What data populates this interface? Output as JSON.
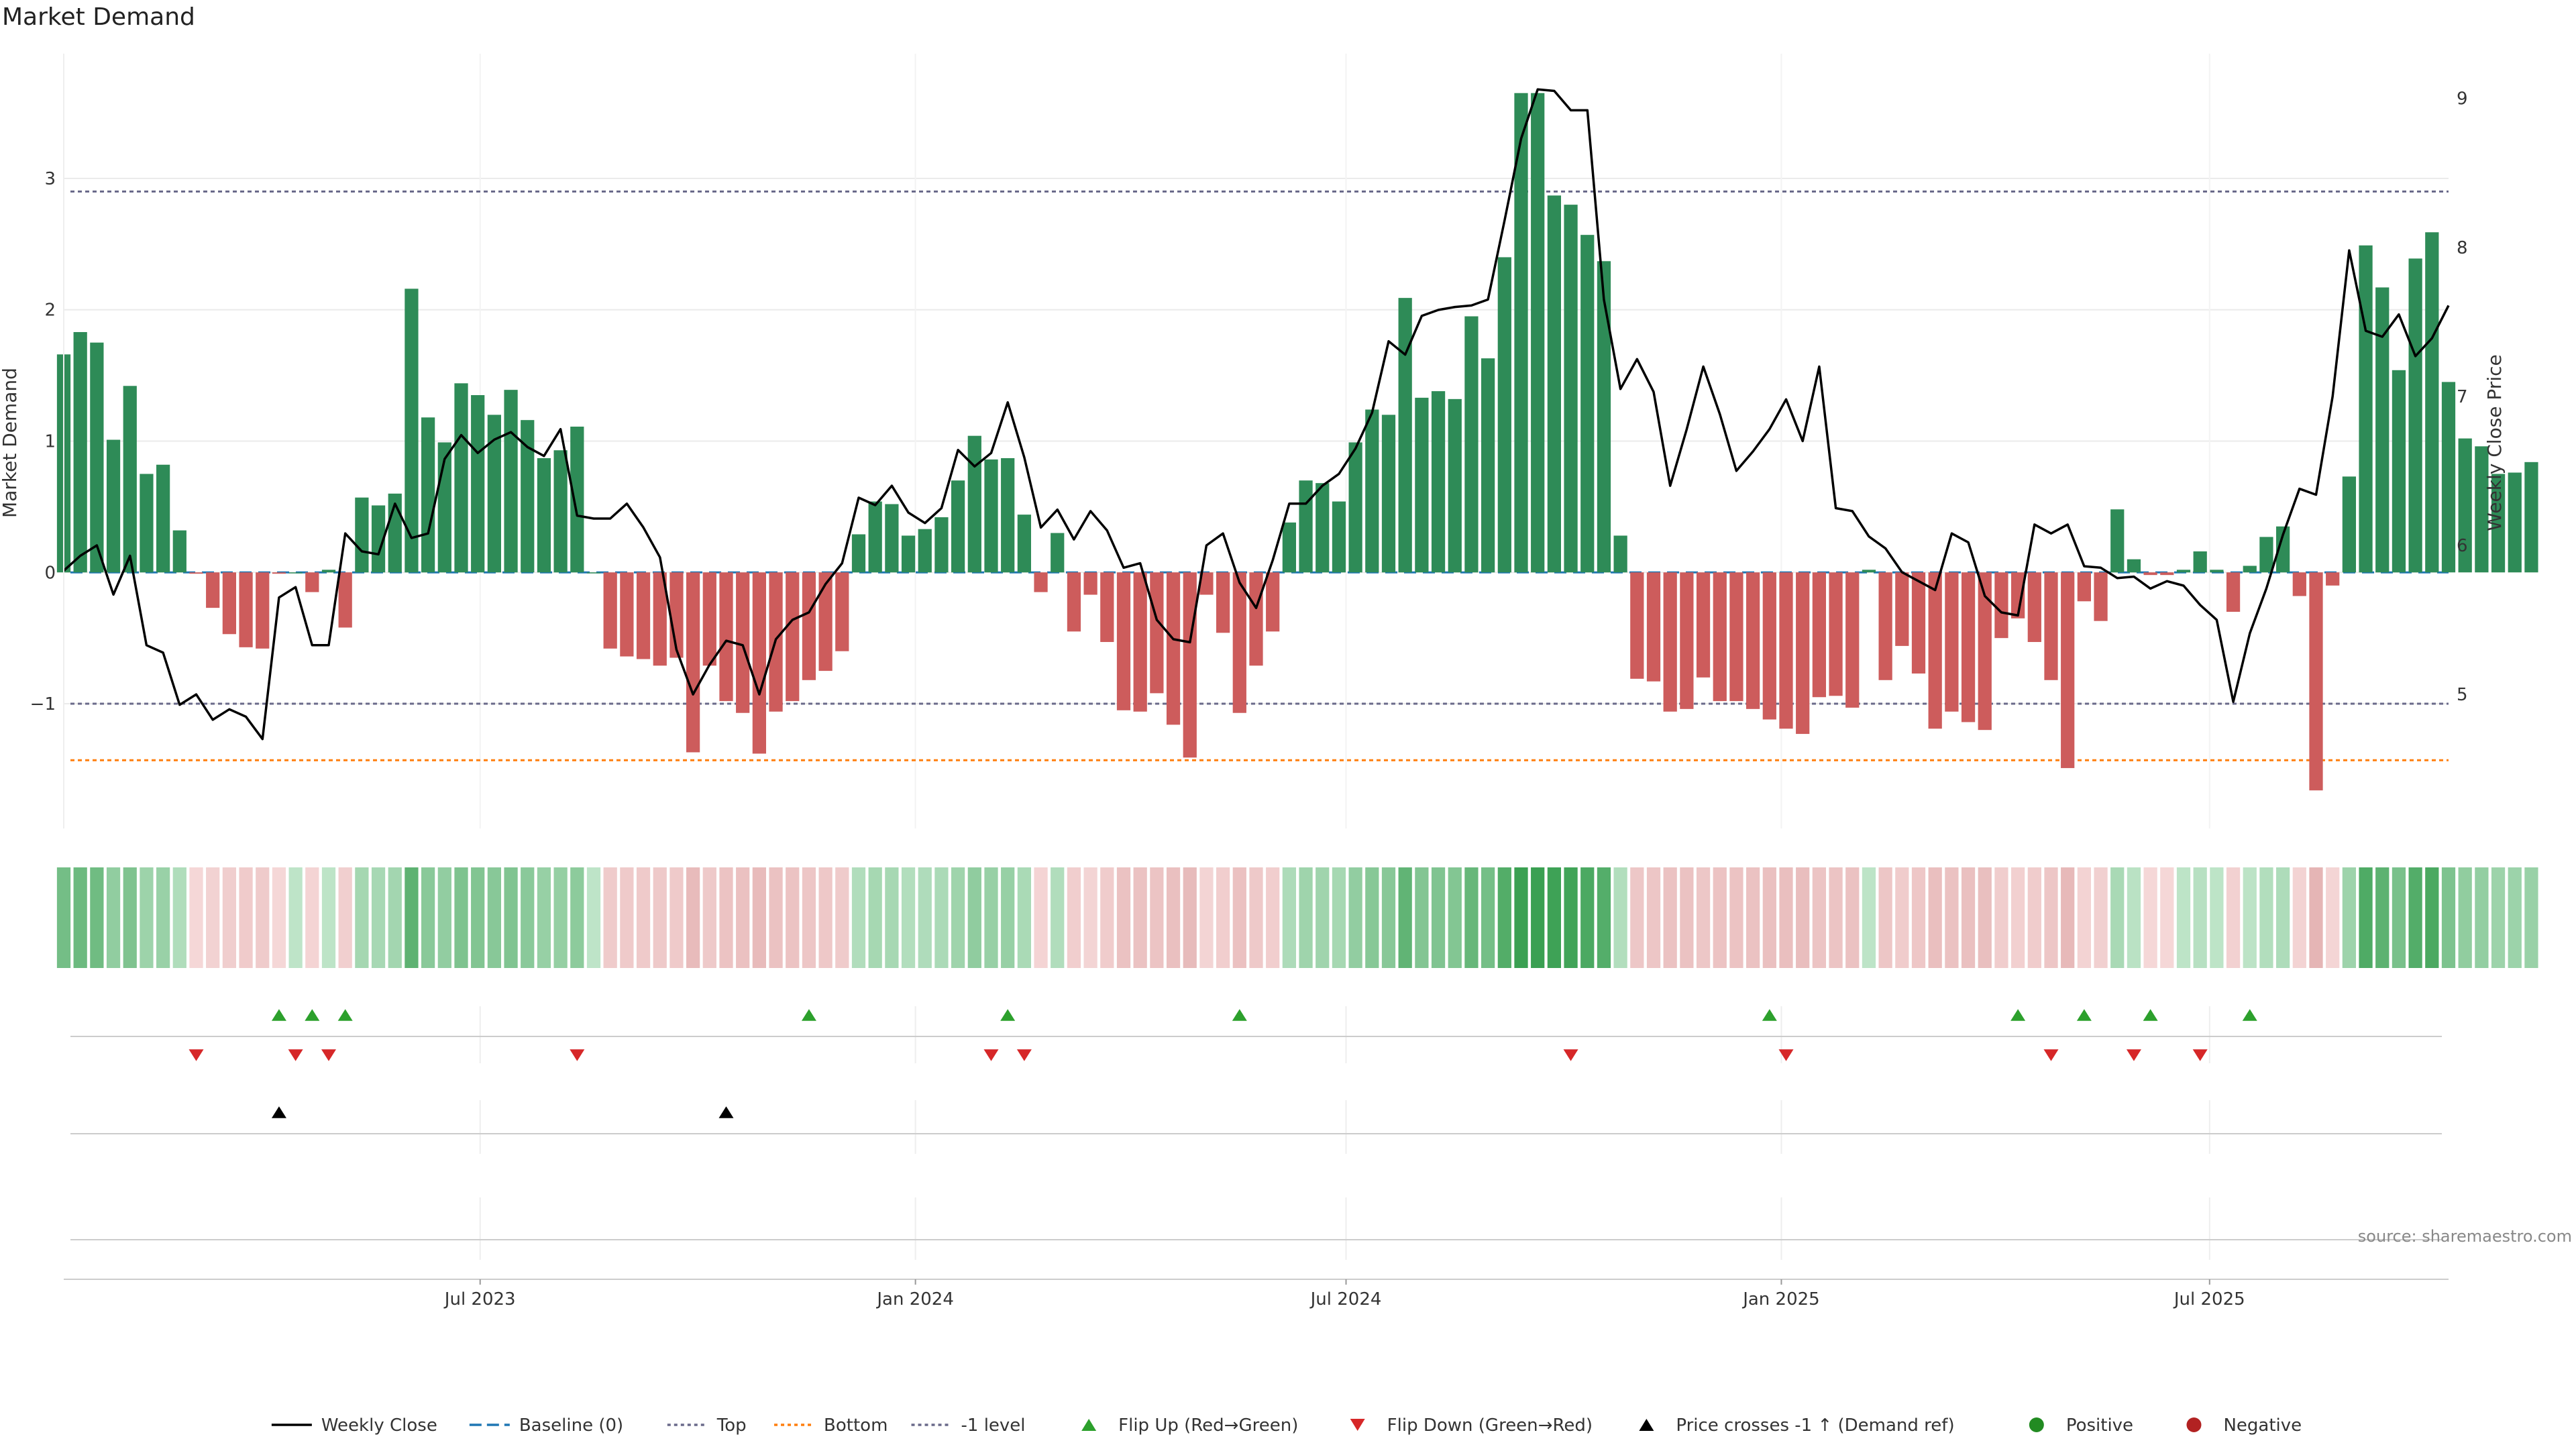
{
  "title": "Market Demand",
  "source": "source: sharemaestro.com",
  "colors": {
    "positive_bar": "#2e8b57",
    "negative_bar": "#cd5c5c",
    "price_line": "#000000",
    "baseline": "#1f77b4",
    "top_line": "#6a6a8a",
    "bottom_line": "#ff7f0e",
    "minus1_line": "#6a6a8a",
    "flip_up": "#2ca02c",
    "flip_down": "#d62728",
    "cross": "#000000",
    "grid": "#ebebeb"
  },
  "chart_data": {
    "type": "bar",
    "x_start": "2023-01-06",
    "x_step_days": 7,
    "xlim": [
      "2023-01-06",
      "2025-10-10"
    ],
    "x_ticks": [
      {
        "date": "2023-07-01",
        "label": "Jul 2023"
      },
      {
        "date": "2024-01-01",
        "label": "Jan 2024"
      },
      {
        "date": "2024-07-01",
        "label": "Jul 2024"
      },
      {
        "date": "2025-01-01",
        "label": "Jan 2025"
      },
      {
        "date": "2025-07-01",
        "label": "Jul 2025"
      }
    ],
    "ylabel_left": "Market Demand",
    "ylabel_right": "Weekly Close Price",
    "ylim_left": [
      -1.95,
      3.95
    ],
    "ylim_right": [
      4.1,
      9.3
    ],
    "left_ticks": [
      {
        "value": 3,
        "label": "3"
      },
      {
        "value": 2,
        "label": "2"
      },
      {
        "value": 1,
        "label": "1"
      },
      {
        "value": 0,
        "label": "0"
      },
      {
        "value": -1,
        "label": "−1"
      }
    ],
    "right_ticks": [
      {
        "value": 9,
        "label": "9"
      },
      {
        "value": 8,
        "label": "8"
      },
      {
        "value": 7,
        "label": "7"
      },
      {
        "value": 6,
        "label": "6"
      },
      {
        "value": 5,
        "label": "5"
      }
    ],
    "reference_lines": {
      "top": 2.9,
      "bottom": -1.43,
      "minus1": -1.0,
      "baseline": 0
    },
    "demand": [
      1.66,
      1.83,
      1.75,
      1.01,
      1.42,
      0.75,
      0.82,
      0.32,
      -0.01,
      -0.27,
      -0.47,
      -0.57,
      -0.58,
      -0.01,
      0.0,
      -0.15,
      0.02,
      -0.42,
      0.57,
      0.51,
      0.6,
      2.16,
      1.18,
      0.99,
      1.44,
      1.35,
      1.2,
      1.39,
      1.16,
      0.87,
      0.93,
      1.11,
      0.0,
      -0.58,
      -0.64,
      -0.66,
      -0.71,
      -0.65,
      -1.37,
      -0.71,
      -0.98,
      -1.07,
      -1.38,
      -1.06,
      -0.98,
      -0.82,
      -0.75,
      -0.6,
      0.29,
      0.54,
      0.52,
      0.28,
      0.33,
      0.42,
      0.7,
      1.04,
      0.86,
      0.87,
      0.44,
      -0.15,
      0.3,
      -0.45,
      -0.17,
      -0.53,
      -1.05,
      -1.06,
      -0.92,
      -1.16,
      -1.41,
      -0.17,
      -0.46,
      -1.07,
      -0.71,
      -0.45,
      0.38,
      0.7,
      0.68,
      0.54,
      0.99,
      1.24,
      1.2,
      2.09,
      1.33,
      1.38,
      1.32,
      1.95,
      1.63,
      2.4,
      3.65,
      3.65,
      2.87,
      2.8,
      2.57,
      2.37,
      0.28,
      -0.81,
      -0.83,
      -1.06,
      -1.04,
      -0.8,
      -0.98,
      -0.98,
      -1.04,
      -1.12,
      -1.19,
      -1.23,
      -0.95,
      -0.94,
      -1.03,
      0.02,
      -0.82,
      -0.56,
      -0.77,
      -1.19,
      -1.06,
      -1.14,
      -1.2,
      -0.5,
      -0.35,
      -0.53,
      -0.82,
      -1.49,
      -0.22,
      -0.37,
      0.48,
      0.1,
      -0.02,
      -0.02,
      0.02,
      0.16,
      0.02,
      -0.3,
      0.05,
      0.27,
      0.35,
      -0.18,
      -1.66,
      -0.1,
      0.73,
      2.49,
      2.17,
      1.54,
      2.39,
      2.59,
      1.45,
      1.02,
      0.96,
      0.75,
      0.76,
      0.84
    ],
    "weekly_close": [
      5.83,
      5.93,
      6.0,
      5.67,
      5.93,
      5.33,
      5.28,
      4.93,
      5.0,
      4.83,
      4.9,
      4.85,
      4.7,
      5.65,
      5.72,
      5.33,
      5.33,
      6.08,
      5.96,
      5.94,
      6.28,
      6.05,
      6.08,
      6.58,
      6.74,
      6.62,
      6.71,
      6.76,
      6.66,
      6.6,
      6.78,
      6.2,
      6.18,
      6.18,
      6.28,
      6.12,
      5.92,
      5.3,
      5.0,
      5.2,
      5.36,
      5.33,
      5.0,
      5.37,
      5.5,
      5.55,
      5.74,
      5.88,
      6.32,
      6.27,
      6.4,
      6.22,
      6.15,
      6.25,
      6.64,
      6.53,
      6.62,
      6.96,
      6.59,
      6.12,
      6.24,
      6.04,
      6.23,
      6.1,
      5.85,
      5.88,
      5.5,
      5.37,
      5.35,
      6.0,
      6.08,
      5.75,
      5.58,
      5.9,
      6.28,
      6.28,
      6.4,
      6.48,
      6.65,
      6.89,
      7.37,
      7.28,
      7.54,
      7.58,
      7.6,
      7.61,
      7.65,
      8.18,
      8.73,
      9.06,
      9.05,
      8.92,
      8.92,
      7.65,
      7.05,
      7.25,
      7.03,
      6.4,
      6.78,
      7.2,
      6.88,
      6.5,
      6.63,
      6.78,
      6.98,
      6.7,
      7.2,
      6.25,
      6.23,
      6.06,
      5.98,
      5.82,
      5.76,
      5.7,
      6.08,
      6.02,
      5.66,
      5.55,
      5.53,
      6.14,
      6.08,
      6.14,
      5.86,
      5.85,
      5.78,
      5.79,
      5.71,
      5.76,
      5.73,
      5.6,
      5.5,
      4.95,
      5.41,
      5.71,
      6.07,
      6.38,
      6.34,
      7.0,
      7.98,
      7.44,
      7.4,
      7.55,
      7.27,
      7.39,
      7.61
    ],
    "bottom_strip_score": [
      1.66,
      1.83,
      1.75,
      1.01,
      1.42,
      0.75,
      0.82,
      0.32,
      -0.01,
      -0.27,
      -0.47,
      -0.57,
      -0.58,
      -0.01,
      0.0,
      -0.15,
      0.02,
      -0.42,
      0.57,
      0.51,
      0.6,
      2.16,
      1.18,
      0.99,
      1.44,
      1.35,
      1.2,
      1.39,
      1.16,
      0.87,
      0.93,
      1.11,
      0.0,
      -0.58,
      -0.64,
      -0.66,
      -0.71,
      -0.65,
      -1.37,
      -0.71,
      -0.98,
      -1.07,
      -1.38,
      -1.06,
      -0.98,
      -0.82,
      -0.75,
      -0.6,
      0.29,
      0.54,
      0.52,
      0.28,
      0.33,
      0.42,
      0.7,
      1.04,
      0.86,
      0.87,
      0.44,
      -0.15,
      0.3,
      -0.45,
      -0.17,
      -0.53,
      -1.05,
      -1.06,
      -0.92,
      -1.16,
      -1.41,
      -0.17,
      -0.46,
      -1.07,
      -0.71,
      -0.45,
      0.38,
      0.7,
      0.68,
      0.54,
      0.99,
      1.24,
      1.2,
      2.09,
      1.33,
      1.38,
      1.32,
      1.95,
      1.63,
      2.4,
      3.65,
      3.65,
      2.87,
      2.8,
      2.57,
      2.37,
      0.28,
      -0.81,
      -0.83,
      -1.06,
      -1.04,
      -0.8,
      -0.98,
      -0.98,
      -1.04,
      -1.12,
      -1.19,
      -1.23,
      -0.95,
      -0.94,
      -1.03,
      0.02,
      -0.82,
      -0.56,
      -0.77,
      -1.19,
      -1.06,
      -1.14,
      -1.2,
      -0.5,
      -0.35,
      -0.53,
      -0.82,
      -1.49,
      -0.22,
      -0.37,
      0.48,
      0.1,
      -0.02,
      -0.02,
      0.02,
      0.16,
      0.02,
      -0.3,
      0.05,
      0.27,
      0.35,
      -0.18,
      -1.66,
      -0.1,
      0.73,
      2.49,
      2.17,
      1.54,
      2.39,
      2.59,
      1.45,
      1.02,
      0.96,
      0.75,
      0.76,
      0.84
    ],
    "flip_up_weeks": [
      13,
      15,
      17,
      45,
      57,
      71,
      103,
      118,
      122,
      126,
      132
    ],
    "flip_down_weeks": [
      8,
      14,
      16,
      31,
      56,
      58,
      91,
      104,
      120,
      125,
      129
    ],
    "cross_weeks": [
      13,
      40
    ]
  },
  "legend": [
    {
      "label": "Weekly Close",
      "kind": "line",
      "color": "#000000"
    },
    {
      "label": "Baseline (0)",
      "kind": "dash",
      "color": "#1f77b4"
    },
    {
      "label": "Top",
      "kind": "dot",
      "color": "#6a6a8a"
    },
    {
      "label": "Bottom",
      "kind": "dot",
      "color": "#ff7f0e"
    },
    {
      "label": "-1 level",
      "kind": "dot",
      "color": "#6a6a8a"
    },
    {
      "label": "Flip Up (Red→Green)",
      "kind": "tri-up",
      "color": "#2ca02c"
    },
    {
      "label": "Flip Down (Green→Red)",
      "kind": "tri-down",
      "color": "#d62728"
    },
    {
      "label": "Price crosses -1 ↑ (Demand ref)",
      "kind": "tri-up",
      "color": "#000000"
    },
    {
      "label": "Positive",
      "kind": "circle",
      "color": "#228b22"
    },
    {
      "label": "Negative",
      "kind": "circle",
      "color": "#b22222"
    }
  ]
}
